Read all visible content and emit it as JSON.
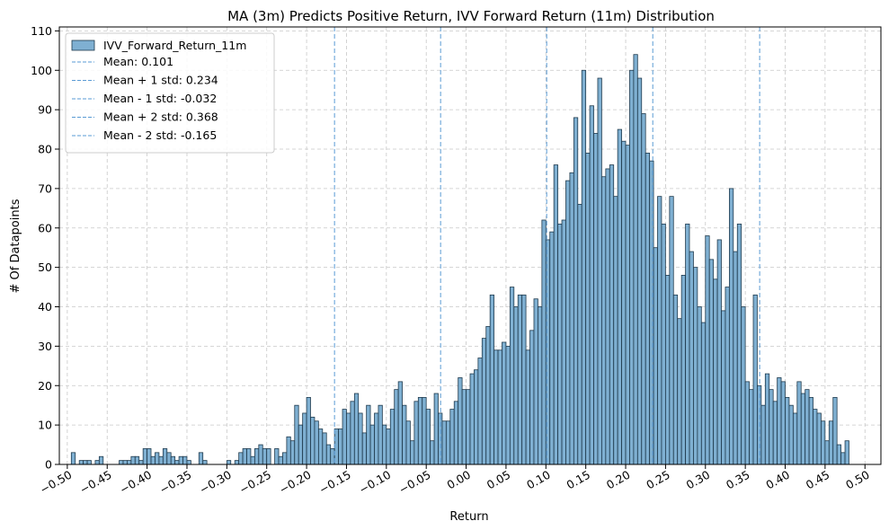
{
  "chart_data": {
    "type": "bar",
    "title": "MA (3m) Predicts Positive Return, IVV Forward Return (11m) Distribution",
    "xlabel": "Return",
    "ylabel": "# Of Datapoints",
    "xlim": [
      -0.51,
      0.52
    ],
    "ylim": [
      0,
      111
    ],
    "x_ticks": [
      -0.5,
      -0.45,
      -0.4,
      -0.35,
      -0.3,
      -0.25,
      -0.2,
      -0.15,
      -0.1,
      -0.05,
      0.0,
      0.05,
      0.1,
      0.15,
      0.2,
      0.25,
      0.3,
      0.35,
      0.4,
      0.45,
      0.5
    ],
    "x_tick_labels": [
      "−0.50",
      "−0.45",
      "−0.40",
      "−0.35",
      "−0.30",
      "−0.25",
      "−0.20",
      "−0.15",
      "−0.10",
      "−0.05",
      "0.00",
      "0.05",
      "0.10",
      "0.15",
      "0.20",
      "0.25",
      "0.30",
      "0.35",
      "0.40",
      "0.45",
      "0.50"
    ],
    "y_ticks": [
      0,
      10,
      20,
      30,
      40,
      50,
      60,
      70,
      80,
      90,
      100,
      110
    ],
    "grid": true,
    "legend_position": "top-left",
    "bar_color": "#7fb0d2",
    "bar_edge_color": "#1f3a4d",
    "line_color": "#5a9bd4",
    "bin_width": 0.00496,
    "series": [
      {
        "name": "IVV_Forward_Return_11m",
        "bins": [
          [
            -0.495,
            3
          ],
          [
            -0.485,
            1
          ],
          [
            -0.48,
            1
          ],
          [
            -0.475,
            1
          ],
          [
            -0.465,
            1
          ],
          [
            -0.46,
            2
          ],
          [
            -0.435,
            1
          ],
          [
            -0.43,
            1
          ],
          [
            -0.425,
            1
          ],
          [
            -0.42,
            2
          ],
          [
            -0.415,
            2
          ],
          [
            -0.41,
            1
          ],
          [
            -0.405,
            4
          ],
          [
            -0.4,
            4
          ],
          [
            -0.395,
            2
          ],
          [
            -0.39,
            3
          ],
          [
            -0.385,
            2
          ],
          [
            -0.38,
            4
          ],
          [
            -0.375,
            3
          ],
          [
            -0.37,
            2
          ],
          [
            -0.365,
            1
          ],
          [
            -0.36,
            2
          ],
          [
            -0.355,
            2
          ],
          [
            -0.35,
            1
          ],
          [
            -0.335,
            3
          ],
          [
            -0.33,
            1
          ],
          [
            -0.3,
            1
          ],
          [
            -0.29,
            1
          ],
          [
            -0.285,
            3
          ],
          [
            -0.28,
            4
          ],
          [
            -0.275,
            4
          ],
          [
            -0.27,
            2
          ],
          [
            -0.265,
            4
          ],
          [
            -0.26,
            5
          ],
          [
            -0.255,
            4
          ],
          [
            -0.25,
            4
          ],
          [
            -0.24,
            4
          ],
          [
            -0.235,
            2
          ],
          [
            -0.23,
            3
          ],
          [
            -0.225,
            7
          ],
          [
            -0.22,
            6
          ],
          [
            -0.215,
            15
          ],
          [
            -0.21,
            10
          ],
          [
            -0.205,
            13
          ],
          [
            -0.2,
            17
          ],
          [
            -0.195,
            12
          ],
          [
            -0.19,
            11
          ],
          [
            -0.185,
            9
          ],
          [
            -0.18,
            8
          ],
          [
            -0.175,
            5
          ],
          [
            -0.17,
            4
          ],
          [
            -0.165,
            9
          ],
          [
            -0.16,
            9
          ],
          [
            -0.155,
            14
          ],
          [
            -0.15,
            13
          ],
          [
            -0.145,
            16
          ],
          [
            -0.14,
            18
          ],
          [
            -0.135,
            13
          ],
          [
            -0.13,
            8
          ],
          [
            -0.125,
            15
          ],
          [
            -0.12,
            10
          ],
          [
            -0.115,
            13
          ],
          [
            -0.11,
            15
          ],
          [
            -0.105,
            10
          ],
          [
            -0.1,
            9
          ],
          [
            -0.095,
            14
          ],
          [
            -0.09,
            19
          ],
          [
            -0.085,
            21
          ],
          [
            -0.08,
            15
          ],
          [
            -0.075,
            11
          ],
          [
            -0.07,
            6
          ],
          [
            -0.065,
            16
          ],
          [
            -0.06,
            17
          ],
          [
            -0.055,
            17
          ],
          [
            -0.05,
            14
          ],
          [
            -0.045,
            6
          ],
          [
            -0.04,
            18
          ],
          [
            -0.035,
            13
          ],
          [
            -0.03,
            11
          ],
          [
            -0.025,
            11
          ],
          [
            -0.02,
            14
          ],
          [
            -0.015,
            16
          ],
          [
            -0.01,
            22
          ],
          [
            -0.005,
            19
          ],
          [
            0.0,
            19
          ],
          [
            0.005,
            23
          ],
          [
            0.01,
            24
          ],
          [
            0.015,
            27
          ],
          [
            0.02,
            32
          ],
          [
            0.025,
            35
          ],
          [
            0.03,
            43
          ],
          [
            0.035,
            29
          ],
          [
            0.04,
            29
          ],
          [
            0.045,
            31
          ],
          [
            0.05,
            30
          ],
          [
            0.055,
            45
          ],
          [
            0.06,
            40
          ],
          [
            0.065,
            43
          ],
          [
            0.07,
            43
          ],
          [
            0.075,
            29
          ],
          [
            0.08,
            34
          ],
          [
            0.085,
            42
          ],
          [
            0.09,
            40
          ],
          [
            0.095,
            62
          ],
          [
            0.1,
            57
          ],
          [
            0.105,
            59
          ],
          [
            0.11,
            76
          ],
          [
            0.115,
            61
          ],
          [
            0.12,
            62
          ],
          [
            0.125,
            72
          ],
          [
            0.13,
            74
          ],
          [
            0.135,
            88
          ],
          [
            0.14,
            66
          ],
          [
            0.145,
            100
          ],
          [
            0.15,
            79
          ],
          [
            0.155,
            91
          ],
          [
            0.16,
            84
          ],
          [
            0.165,
            98
          ],
          [
            0.17,
            73
          ],
          [
            0.175,
            75
          ],
          [
            0.18,
            76
          ],
          [
            0.185,
            68
          ],
          [
            0.19,
            85
          ],
          [
            0.195,
            82
          ],
          [
            0.2,
            81
          ],
          [
            0.205,
            100
          ],
          [
            0.21,
            104
          ],
          [
            0.215,
            98
          ],
          [
            0.22,
            89
          ],
          [
            0.225,
            79
          ],
          [
            0.23,
            77
          ],
          [
            0.235,
            55
          ],
          [
            0.24,
            68
          ],
          [
            0.245,
            61
          ],
          [
            0.25,
            48
          ],
          [
            0.255,
            68
          ],
          [
            0.26,
            43
          ],
          [
            0.265,
            37
          ],
          [
            0.27,
            48
          ],
          [
            0.275,
            61
          ],
          [
            0.28,
            54
          ],
          [
            0.285,
            50
          ],
          [
            0.29,
            40
          ],
          [
            0.295,
            36
          ],
          [
            0.3,
            58
          ],
          [
            0.305,
            52
          ],
          [
            0.31,
            47
          ],
          [
            0.315,
            57
          ],
          [
            0.32,
            39
          ],
          [
            0.325,
            45
          ],
          [
            0.33,
            70
          ],
          [
            0.335,
            54
          ],
          [
            0.34,
            61
          ],
          [
            0.345,
            40
          ],
          [
            0.35,
            21
          ],
          [
            0.355,
            19
          ],
          [
            0.36,
            43
          ],
          [
            0.365,
            20
          ],
          [
            0.37,
            15
          ],
          [
            0.375,
            23
          ],
          [
            0.38,
            19
          ],
          [
            0.385,
            16
          ],
          [
            0.39,
            22
          ],
          [
            0.395,
            21
          ],
          [
            0.4,
            17
          ],
          [
            0.405,
            15
          ],
          [
            0.41,
            13
          ],
          [
            0.415,
            21
          ],
          [
            0.42,
            18
          ],
          [
            0.425,
            19
          ],
          [
            0.43,
            17
          ],
          [
            0.435,
            14
          ],
          [
            0.44,
            13
          ],
          [
            0.445,
            11
          ],
          [
            0.45,
            6
          ],
          [
            0.455,
            11
          ],
          [
            0.46,
            17
          ],
          [
            0.465,
            5
          ],
          [
            0.47,
            3
          ],
          [
            0.475,
            6
          ]
        ]
      }
    ],
    "reference_lines": [
      {
        "name": "Mean: 0.101",
        "x": 0.101
      },
      {
        "name": "Mean + 1 std: 0.234",
        "x": 0.234
      },
      {
        "name": "Mean - 1 std: -0.032",
        "x": -0.032
      },
      {
        "name": "Mean + 2 std: 0.368",
        "x": 0.368
      },
      {
        "name": "Mean - 2 std: -0.165",
        "x": -0.165
      }
    ]
  }
}
